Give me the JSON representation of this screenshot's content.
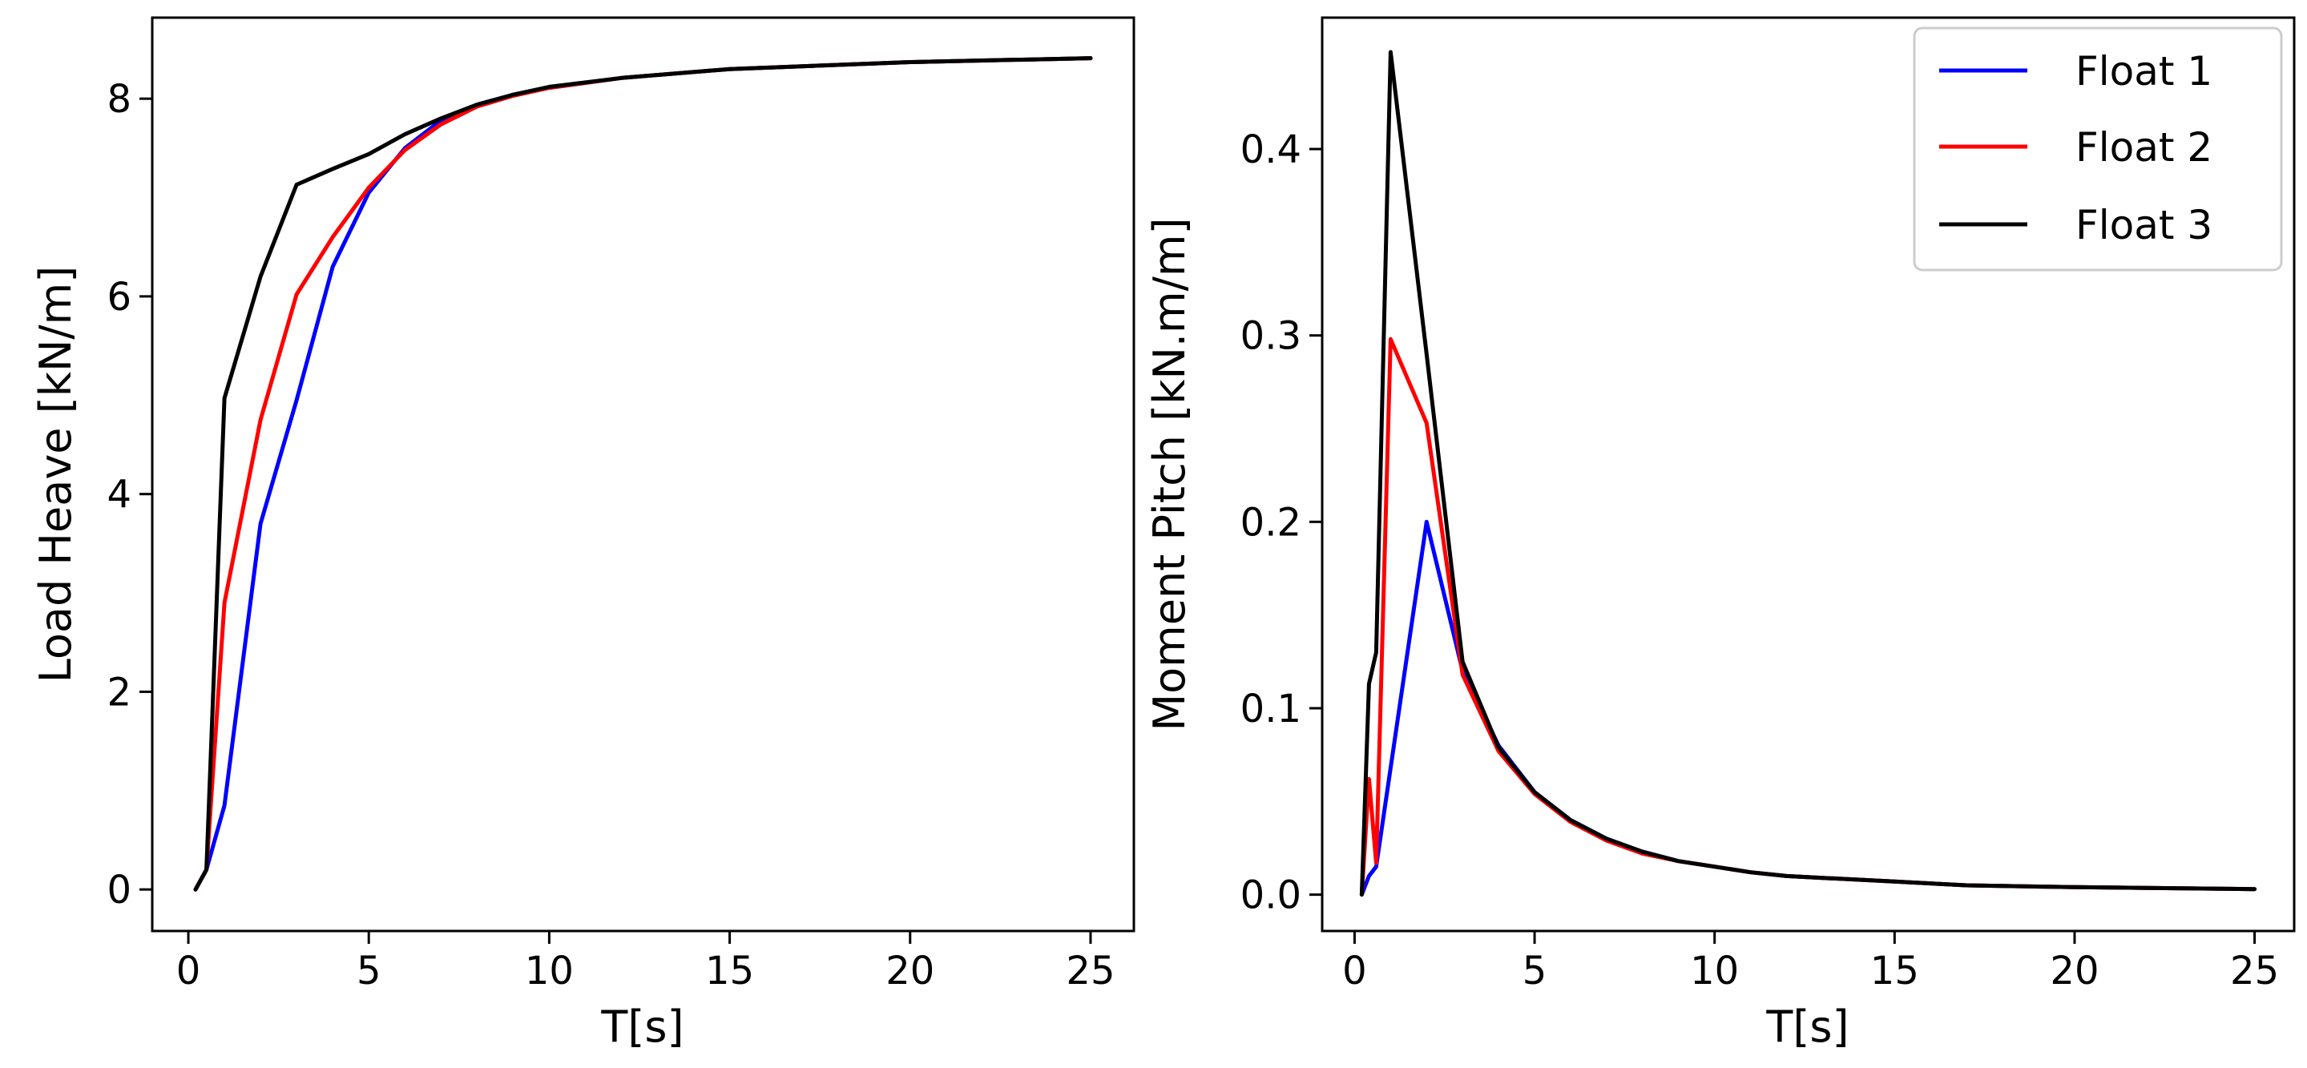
{
  "chart_data": [
    {
      "type": "line",
      "xlabel": "T[s]",
      "ylabel": "Load Heave [kN/m]",
      "xlim": [
        -1.0,
        26.2
      ],
      "ylim": [
        -0.42,
        8.82
      ],
      "xticks": [
        0,
        5,
        10,
        15,
        20,
        25
      ],
      "xtick_labels": [
        "0",
        "5",
        "10",
        "15",
        "20",
        "25"
      ],
      "yticks": [
        0,
        2,
        4,
        6,
        8
      ],
      "ytick_labels": [
        "0",
        "2",
        "4",
        "6",
        "8"
      ],
      "grid": false,
      "legend": null,
      "series": [
        {
          "color": "#0000ff",
          "x": [
            0.2,
            0.5,
            1,
            2,
            3,
            4,
            5,
            6,
            7,
            8,
            9,
            10,
            12,
            15,
            20,
            25
          ],
          "y": [
            0,
            0.2,
            0.85,
            3.7,
            4.95,
            6.3,
            7.05,
            7.5,
            7.78,
            7.94,
            8.04,
            8.11,
            8.21,
            8.3,
            8.37,
            8.41
          ]
        },
        {
          "color": "#ff0000",
          "x": [
            0.2,
            0.5,
            1,
            2,
            3,
            4,
            5,
            6,
            7,
            8,
            9,
            10,
            12,
            15,
            20,
            25
          ],
          "y": [
            0,
            0.2,
            2.9,
            4.75,
            6.02,
            6.6,
            7.1,
            7.48,
            7.74,
            7.92,
            8.03,
            8.11,
            8.21,
            8.3,
            8.37,
            8.41
          ]
        },
        {
          "color": "#000000",
          "x": [
            0.2,
            0.5,
            1,
            2,
            3,
            4,
            5,
            6,
            7,
            8,
            9,
            10,
            12,
            15,
            20,
            25
          ],
          "y": [
            0,
            0.2,
            4.97,
            6.2,
            7.13,
            7.29,
            7.44,
            7.64,
            7.8,
            7.94,
            8.04,
            8.12,
            8.21,
            8.3,
            8.37,
            8.41
          ]
        }
      ]
    },
    {
      "type": "line",
      "xlabel": "T[s]",
      "ylabel": "Moment Pitch [kN.m/m]",
      "xlim": [
        -0.9,
        26.1
      ],
      "ylim": [
        -0.0195,
        0.4705
      ],
      "xticks": [
        0,
        5,
        10,
        15,
        20,
        25
      ],
      "xtick_labels": [
        "0",
        "5",
        "10",
        "15",
        "20",
        "25"
      ],
      "yticks": [
        0.0,
        0.1,
        0.2,
        0.3,
        0.4
      ],
      "ytick_labels": [
        "0.0",
        "0.1",
        "0.2",
        "0.3",
        "0.4"
      ],
      "grid": false,
      "legend": "top-right",
      "series": [
        {
          "name": "Float 1",
          "color": "#0000ff",
          "x": [
            0.2,
            0.4,
            0.6,
            2,
            3,
            4,
            5,
            6,
            7,
            8,
            9,
            10,
            11,
            12,
            13,
            15,
            17,
            20,
            25
          ],
          "y": [
            0,
            0.01,
            0.015,
            0.2,
            0.12,
            0.08,
            0.055,
            0.04,
            0.03,
            0.023,
            0.018,
            0.015,
            0.012,
            0.01,
            0.009,
            0.007,
            0.005,
            0.004,
            0.003
          ]
        },
        {
          "name": "Float 2",
          "color": "#ff0000",
          "x": [
            0.2,
            0.4,
            0.6,
            1,
            2,
            3,
            4,
            5,
            6,
            7,
            8,
            9,
            10,
            11,
            12,
            13,
            15,
            17,
            20,
            25
          ],
          "y": [
            0,
            0.062,
            0.017,
            0.298,
            0.253,
            0.118,
            0.077,
            0.054,
            0.039,
            0.029,
            0.022,
            0.018,
            0.015,
            0.012,
            0.01,
            0.009,
            0.007,
            0.005,
            0.004,
            0.003
          ]
        },
        {
          "name": "Float 3",
          "color": "#000000",
          "x": [
            0.2,
            0.4,
            0.6,
            1,
            2,
            3,
            4,
            5,
            6,
            7,
            8,
            9,
            10,
            11,
            12,
            13,
            15,
            17,
            20,
            25
          ],
          "y": [
            0,
            0.113,
            0.13,
            0.452,
            0.29,
            0.125,
            0.079,
            0.055,
            0.04,
            0.03,
            0.023,
            0.018,
            0.015,
            0.012,
            0.01,
            0.009,
            0.007,
            0.005,
            0.004,
            0.003
          ]
        }
      ]
    }
  ]
}
